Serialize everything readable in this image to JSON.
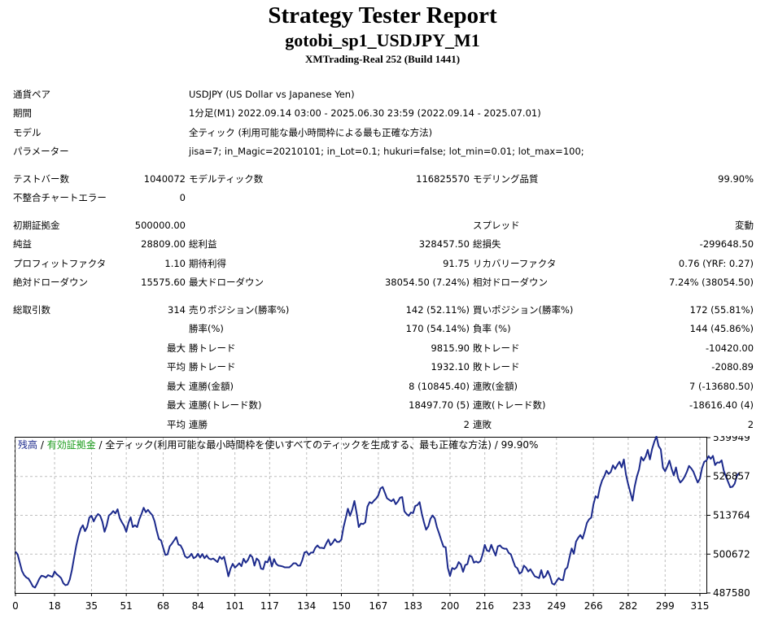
{
  "header": {
    "title": "Strategy Tester Report",
    "subtitle": "gotobi_sp1_USDJPY_M1",
    "build": "XMTrading-Real 252 (Build 1441)"
  },
  "info": {
    "symbol_label": "通貨ペア",
    "symbol_value": "USDJPY (US Dollar vs Japanese Yen)",
    "period_label": "期間",
    "period_value": "1分足(M1) 2022.09.14 03:00 - 2025.06.30 23:59 (2022.09.14 - 2025.07.01)",
    "model_label": "モデル",
    "model_value": "全ティック (利用可能な最小時間枠による最も正確な方法)",
    "params_label": "パラメーター",
    "params_value": "jisa=7; in_Magic=20210101; in_Lot=0.1; hukuri=false; lot_min=0.01; lot_max=100;"
  },
  "stats": {
    "bars_label": "テストバー数",
    "bars_value": "1040072",
    "ticks_label": "モデルティック数",
    "ticks_value": "116825570",
    "quality_label": "モデリング品質",
    "quality_value": "99.90%",
    "mismatch_label": "不整合チャートエラー",
    "mismatch_value": "0",
    "deposit_label": "初期証拠金",
    "deposit_value": "500000.00",
    "spread_label": "スプレッド",
    "spread_value": "変動",
    "net_label": "純益",
    "net_value": "28809.00",
    "gross_profit_label": "総利益",
    "gross_profit_value": "328457.50",
    "gross_loss_label": "総損失",
    "gross_loss_value": "-299648.50",
    "pf_label": "プロフィットファクタ",
    "pf_value": "1.10",
    "expected_label": "期待利得",
    "expected_value": "91.75",
    "recovery_label": "リカバリーファクタ",
    "recovery_value": "0.76 (YRF: 0.27)",
    "abs_dd_label": "絶対ドローダウン",
    "abs_dd_value": "15575.60",
    "max_dd_label": "最大ドローダウン",
    "max_dd_value": "38054.50 (7.24%)",
    "rel_dd_label": "相対ドローダウン",
    "rel_dd_value": "7.24% (38054.50)",
    "total_trades_label": "総取引数",
    "total_trades_value": "314",
    "short_label": "売りポジション(勝率%)",
    "short_value": "142 (52.11%)",
    "long_label": "買いポジション(勝率%)",
    "long_value": "172 (55.81%)",
    "win_rate_label": "勝率(%)",
    "win_rate_value": "170 (54.14%)",
    "loss_rate_label": "負率 (%)",
    "loss_rate_value": "144 (45.86%)",
    "largest_prefix": "最大",
    "largest_win_label": "勝トレード",
    "largest_win_value": "9815.90",
    "largest_loss_label": "敗トレード",
    "largest_loss_value": "-10420.00",
    "avg_prefix": "平均",
    "avg_win_label": "勝トレード",
    "avg_win_value": "1932.10",
    "avg_loss_label": "敗トレード",
    "avg_loss_value": "-2080.89",
    "max_consec_prefix": "最大",
    "max_consec_win_label": "連勝(金額)",
    "max_consec_win_value": "8 (10845.40)",
    "max_consec_loss_label": "連敗(金額)",
    "max_consec_loss_value": "7 (-13680.50)",
    "max_consec_profit_prefix": "最大",
    "max_consec_profit_label": "連勝(トレード数)",
    "max_consec_profit_value": "18497.70 (5)",
    "max_consec_lossamt_label": "連敗(トレード数)",
    "max_consec_lossamt_value": "-18616.40 (4)",
    "avg_consec_prefix": "平均",
    "avg_consec_win_label": "連勝",
    "avg_consec_win_value": "2",
    "avg_consec_loss_label": "連敗",
    "avg_consec_loss_value": "2"
  },
  "chart_data": {
    "type": "line",
    "legend": {
      "balance": "残高",
      "sep1": " / ",
      "equity": "有効証拠金",
      "rest": " / 全ティック(利用可能な最小時間枠を使いすべてのティックを生成する、最も正確な方法) / 99.90%"
    },
    "colors": {
      "balance": "#1c2a8c",
      "equity": "#1a9b1a",
      "grid": "#bdbdbd"
    },
    "x_ticks": [
      "0",
      "18",
      "35",
      "51",
      "68",
      "84",
      "101",
      "117",
      "134",
      "150",
      "167",
      "183",
      "200",
      "216",
      "233",
      "249",
      "266",
      "282",
      "299",
      "315"
    ],
    "y_ticks": [
      "539949",
      "526857",
      "513764",
      "500672",
      "487580"
    ],
    "xlim": [
      0,
      318
    ],
    "ylim": [
      487580,
      539949
    ],
    "series": [
      {
        "values": [
          501500,
          500600,
          497800,
          495000,
          493600,
          492800,
          492400,
          491200,
          489800,
          489400,
          490800,
          492400,
          493400,
          493200,
          492800,
          493600,
          493300,
          493000,
          494800,
          493900,
          493300,
          492600,
          490900,
          490200,
          490400,
          492100,
          495400,
          499600,
          503600,
          506800,
          509200,
          510400,
          508400,
          509800,
          513000,
          513600,
          511700,
          513200,
          514200,
          513600,
          511600,
          508200,
          510400,
          513700,
          514300,
          515200,
          514400,
          515800,
          512800,
          511400,
          510200,
          508200,
          511200,
          513100,
          509800,
          510400,
          509800,
          512400,
          514200,
          516300,
          514800,
          515600,
          514600,
          513800,
          511800,
          508600,
          505800,
          505300,
          502800,
          500400,
          500600,
          503300,
          504200,
          505300,
          506400,
          503900,
          503600,
          502200,
          500000,
          499400,
          499800,
          500800,
          499300,
          499700,
          500800,
          499500,
          500700,
          499300,
          500200,
          499200,
          498900,
          499200,
          498600,
          498000,
          499800,
          499000,
          499800,
          496600,
          493200,
          495800,
          497400,
          496100,
          496800,
          497600,
          496600,
          499100,
          497800,
          498700,
          500400,
          499700,
          496800,
          499200,
          498500,
          495800,
          495600,
          498200,
          497900,
          499800,
          496500,
          499000,
          497400,
          496800,
          496700,
          496500,
          496200,
          496200,
          496200,
          496800,
          497600,
          497600,
          496800,
          496800,
          498600,
          501200,
          501500,
          500400,
          501200,
          501200,
          502800,
          503600,
          502800,
          502800,
          502600,
          504200,
          505600,
          503700,
          504500,
          505700,
          504800,
          504800,
          505600,
          509800,
          512800,
          516000,
          513600,
          515700,
          518600,
          514600,
          509800,
          511000,
          510800,
          511400,
          516700,
          518200,
          517800,
          518700,
          519400,
          520500,
          522800,
          523300,
          521400,
          519500,
          519000,
          518500,
          519200,
          517500,
          518400,
          519700,
          519900,
          515100,
          514200,
          513600,
          514700,
          514500,
          516900,
          517200,
          518200,
          514400,
          511400,
          508900,
          510000,
          512600,
          513700,
          512700,
          509700,
          507600,
          505300,
          503200,
          503000,
          496000,
          493300,
          496000,
          495600,
          496200,
          498000,
          497200,
          494700,
          497000,
          497300,
          500200,
          499800,
          497800,
          498200,
          497800,
          498300,
          500600,
          503800,
          501900,
          501600,
          503800,
          501900,
          500200,
          503300,
          503600,
          502800,
          502500,
          502500,
          501100,
          500600,
          498500,
          496500,
          495900,
          494100,
          494600,
          496800,
          496100,
          494800,
          495600,
          494400,
          493200,
          492900,
          492600,
          495300,
          492700,
          493300,
          495000,
          493300,
          490800,
          490400,
          491500,
          492600,
          492000,
          491900,
          495500,
          496200,
          499600,
          502600,
          500800,
          504900,
          506200,
          507100,
          505900,
          508300,
          511200,
          512400,
          513000,
          517400,
          520200,
          519600,
          523200,
          525500,
          526900,
          528800,
          527700,
          528400,
          530600,
          529400,
          530700,
          531800,
          529900,
          532600,
          527400,
          524200,
          521500,
          518700,
          523500,
          526800,
          529200,
          533400,
          532200,
          533500,
          535800,
          532600,
          536100,
          538500,
          540400,
          537100,
          536000,
          529800,
          528600,
          530200,
          532200,
          529400,
          527200,
          529900,
          526300,
          524800,
          525600,
          526800,
          528400,
          530400,
          529600,
          528500,
          526600,
          524800,
          526100,
          529700,
          531800,
          532200,
          533700,
          532800,
          533800,
          530700,
          531600,
          531500,
          532300,
          528800,
          526800,
          525000,
          523200,
          523400,
          524400,
          527000,
          528000
        ]
      }
    ]
  }
}
